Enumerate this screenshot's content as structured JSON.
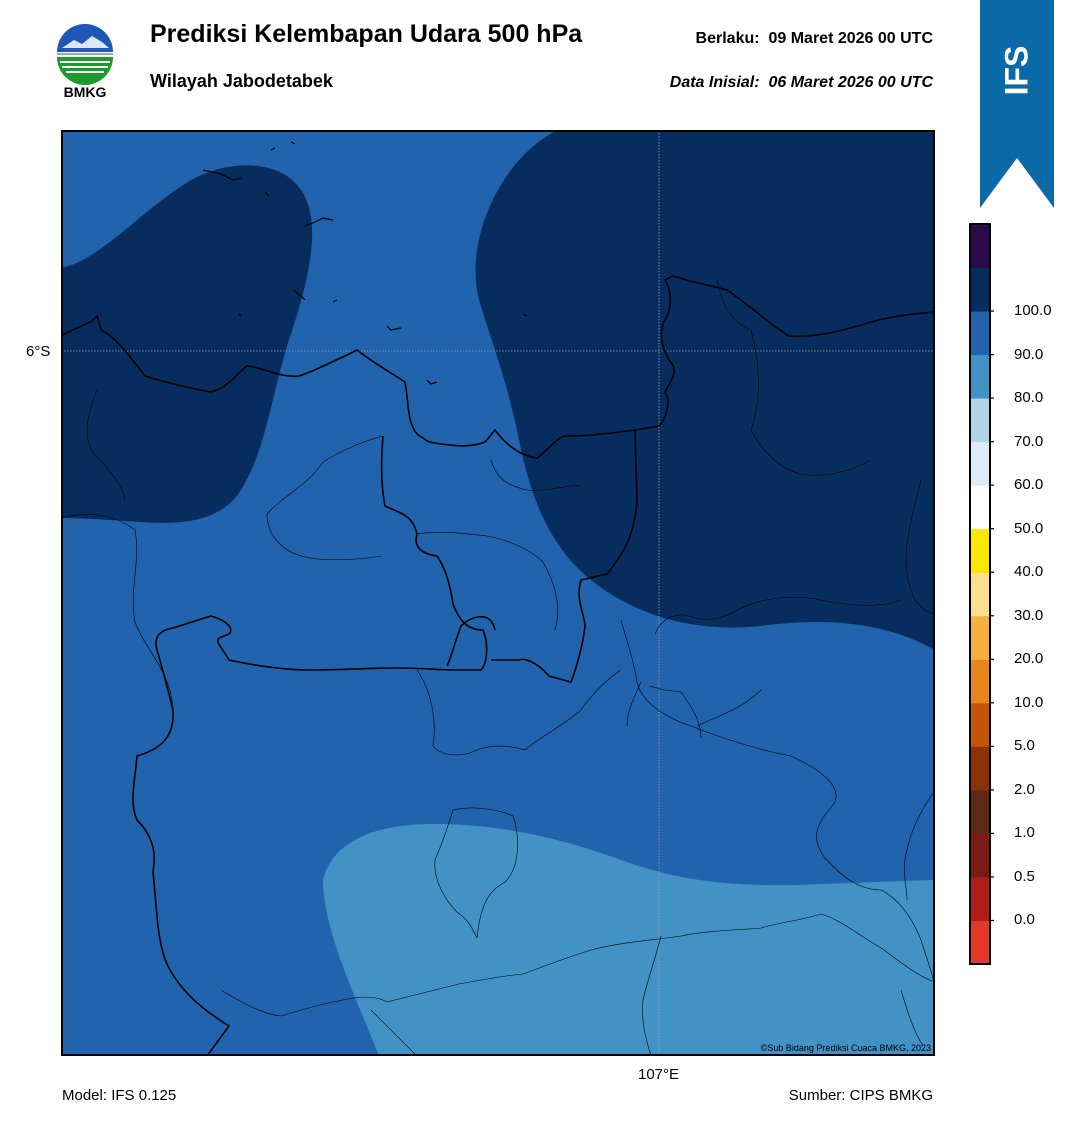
{
  "header": {
    "logo_text": "BMKG",
    "title": "Prediksi Kelembapan Udara 500 hPa",
    "subtitle": "Wilayah Jabodetabek",
    "valid_label": "Berlaku:",
    "valid_value": "09 Maret 2026 00 UTC",
    "init_label": "Data Inisial:",
    "init_value": "06 Maret 2026 00 UTC"
  },
  "ribbon": {
    "label": "IFS",
    "color": "#0a6aa8"
  },
  "map": {
    "lat_label": "6°S",
    "lon_label": "107°E",
    "copyright": "©Sub Bidang Prediksi Cuaca BMKG, 2023",
    "zone_colors": {
      "very_dark": "#062d5e",
      "dark": "#2163ad",
      "medium": "#4292c6"
    }
  },
  "colorbar": {
    "ticks": [
      "0.0",
      "0.5",
      "1.0",
      "2.0",
      "5.0",
      "10.0",
      "20.0",
      "30.0",
      "40.0",
      "50.0",
      "60.0",
      "70.0",
      "80.0",
      "90.0",
      "100.0"
    ],
    "colors": [
      "#e2372a",
      "#b01c18",
      "#7a1a10",
      "#5a2a12",
      "#8a3208",
      "#c45208",
      "#e8861e",
      "#f6b040",
      "#fde08e",
      "#fde600",
      "#ffffff",
      "#deebf7",
      "#b0d5e9",
      "#4292c6",
      "#2163ad",
      "#062d5e",
      "#2b0a4a"
    ]
  },
  "footer": {
    "model": "Model: IFS 0.125",
    "source": "Sumber: CIPS BMKG"
  }
}
